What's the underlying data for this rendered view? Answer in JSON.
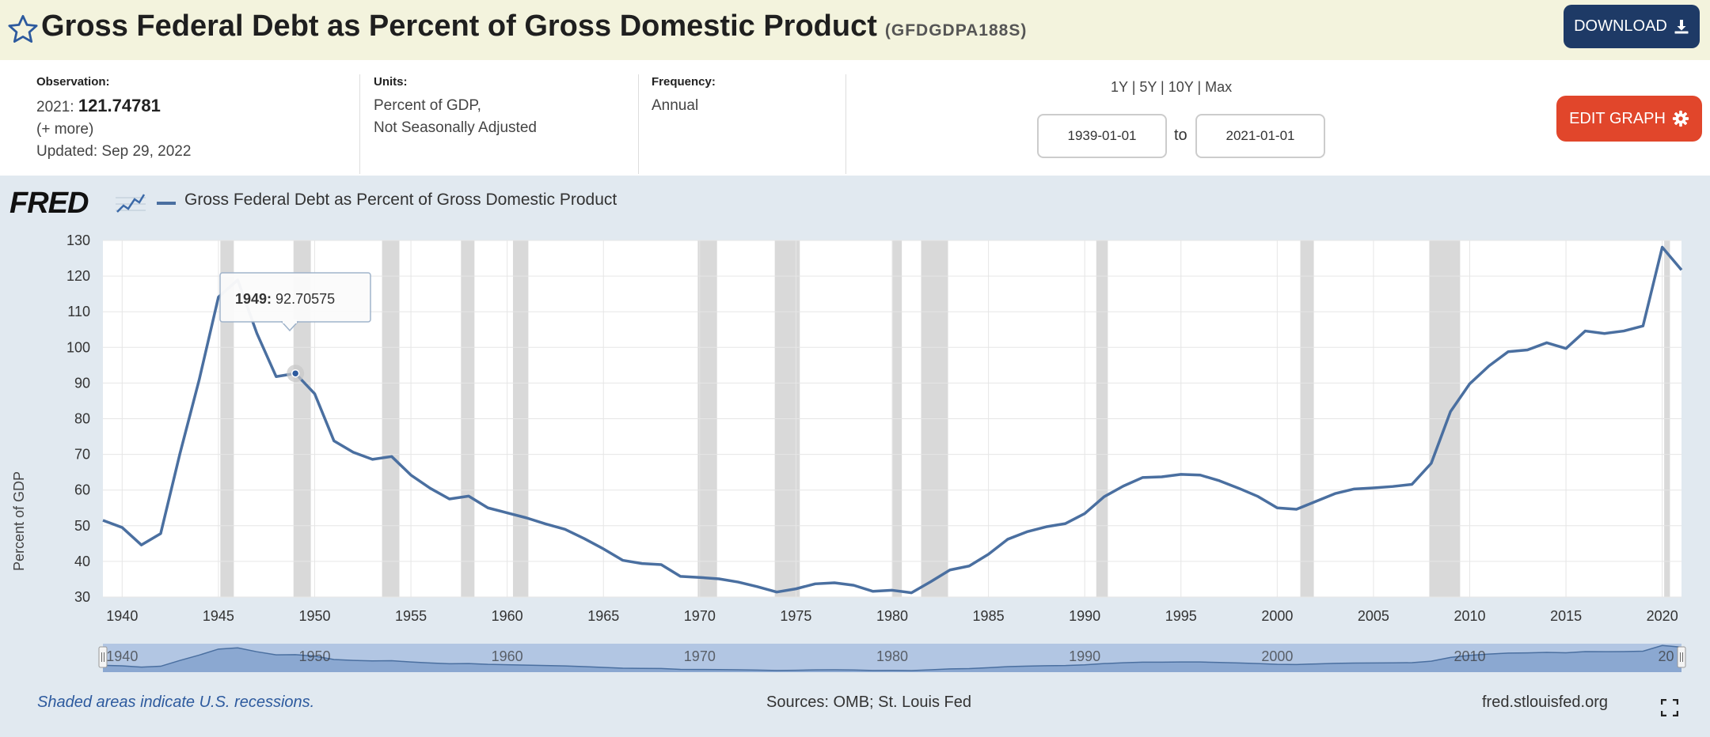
{
  "header": {
    "title": "Gross Federal Debt as Percent of Gross Domestic Product",
    "series_id": "(GFDGDPA188S)",
    "download_label": "DOWNLOAD",
    "icons": [
      "star-icon",
      "download-icon"
    ]
  },
  "meta": {
    "observation_label": "Observation:",
    "observation_year": "2021:",
    "observation_value": "121.74781",
    "more_link": "(+ more)",
    "updated": "Updated: Sep 29, 2022",
    "units_label": "Units:",
    "units_line1": "Percent of GDP,",
    "units_line2": "Not Seasonally Adjusted",
    "frequency_label": "Frequency:",
    "frequency_value": "Annual",
    "range_links": "1Y | 5Y | 10Y | Max",
    "start_date": "1939-01-01",
    "to_label": "to",
    "end_date": "2021-01-01",
    "edit_graph_label": "EDIT GRAPH",
    "icons": [
      "gear-icon"
    ]
  },
  "chart_panel": {
    "logo_text": "FRED",
    "legend_label": "Gross Federal Debt as Percent of Gross Domestic Product",
    "ylabel": "Percent of GDP",
    "tooltip_year": "1949:",
    "tooltip_value": "92.70575",
    "recession_note": "Shaded areas indicate U.S. recessions.",
    "sources": "Sources: OMB; St. Louis Fed",
    "url": "fred.stlouisfed.org",
    "navigator_labels": [
      "1940",
      "1950",
      "1960",
      "1970",
      "1980",
      "1990",
      "2000",
      "2010",
      "20"
    ],
    "icons": [
      "fred-chart-icon",
      "fullscreen-icon"
    ]
  },
  "chart_data": {
    "type": "line",
    "title": "",
    "xlabel": "",
    "ylabel": "Percent of GDP",
    "xlim": [
      1939,
      2021
    ],
    "ylim": [
      30,
      130
    ],
    "yticks": [
      30,
      40,
      50,
      60,
      70,
      80,
      90,
      100,
      110,
      120,
      130
    ],
    "xticks": [
      1940,
      1945,
      1950,
      1955,
      1960,
      1965,
      1970,
      1975,
      1980,
      1985,
      1990,
      1995,
      2000,
      2005,
      2010,
      2015,
      2020
    ],
    "grid": true,
    "line_color": "#4a6fa0",
    "recession_color": "#d9d9d9",
    "recessions": [
      [
        1945.1,
        1945.8
      ],
      [
        1948.9,
        1949.8
      ],
      [
        1953.5,
        1954.4
      ],
      [
        1957.6,
        1958.3
      ],
      [
        1960.3,
        1961.1
      ],
      [
        1969.9,
        1970.9
      ],
      [
        1973.9,
        1975.2
      ],
      [
        1980.0,
        1980.5
      ],
      [
        1981.5,
        1982.9
      ],
      [
        1990.6,
        1991.2
      ],
      [
        2001.2,
        2001.9
      ],
      [
        2007.9,
        2009.5
      ],
      [
        2020.1,
        2020.4
      ]
    ],
    "series": [
      {
        "name": "Gross Federal Debt as Percent of Gross Domestic Product",
        "x": [
          1939,
          1940,
          1941,
          1942,
          1943,
          1944,
          1945,
          1946,
          1947,
          1948,
          1949,
          1950,
          1951,
          1952,
          1953,
          1954,
          1955,
          1956,
          1957,
          1958,
          1959,
          1960,
          1961,
          1962,
          1963,
          1964,
          1965,
          1966,
          1967,
          1968,
          1969,
          1970,
          1971,
          1972,
          1973,
          1974,
          1975,
          1976,
          1977,
          1978,
          1979,
          1980,
          1981,
          1982,
          1983,
          1984,
          1985,
          1986,
          1987,
          1988,
          1989,
          1990,
          1991,
          1992,
          1993,
          1994,
          1995,
          1996,
          1997,
          1998,
          1999,
          2000,
          2001,
          2002,
          2003,
          2004,
          2005,
          2006,
          2007,
          2008,
          2009,
          2010,
          2011,
          2012,
          2013,
          2014,
          2015,
          2016,
          2017,
          2018,
          2019,
          2020,
          2021
        ],
        "values": [
          51.5,
          49.5,
          44.6,
          47.8,
          70.2,
          90.9,
          114.1,
          118.9,
          103.9,
          91.8,
          92.7,
          87.0,
          73.8,
          70.6,
          68.6,
          69.4,
          64.2,
          60.5,
          57.5,
          58.3,
          55.0,
          53.6,
          52.2,
          50.5,
          49.0,
          46.4,
          43.5,
          40.3,
          39.4,
          39.1,
          35.8,
          35.5,
          35.1,
          34.2,
          32.9,
          31.4,
          32.3,
          33.7,
          34.0,
          33.3,
          31.6,
          31.9,
          31.2,
          34.3,
          37.6,
          38.7,
          42.0,
          46.2,
          48.3,
          49.7,
          50.6,
          53.4,
          58.1,
          61.1,
          63.5,
          63.7,
          64.4,
          64.2,
          62.6,
          60.5,
          58.2,
          55.0,
          54.6,
          56.8,
          59.0,
          60.3,
          60.6,
          61.0,
          61.6,
          67.5,
          82.0,
          89.8,
          94.8,
          98.8,
          99.3,
          101.3,
          99.7,
          104.6,
          103.9,
          104.6,
          106.0,
          128.1,
          121.7
        ]
      }
    ],
    "highlight": {
      "x": 1949,
      "y": 92.70575
    }
  }
}
